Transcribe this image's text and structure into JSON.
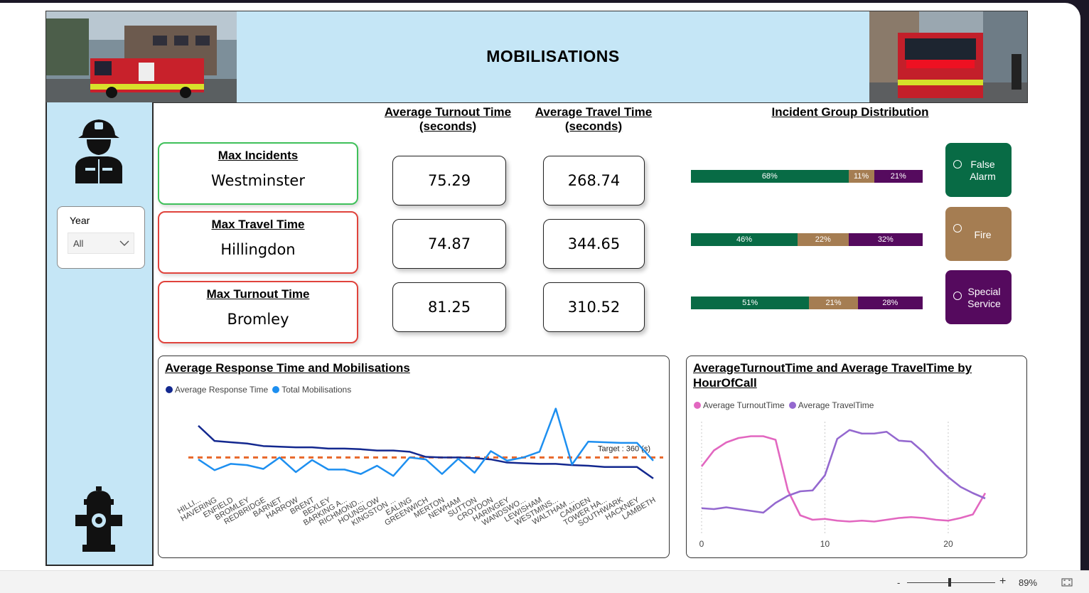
{
  "banner": {
    "title": "MOBILISATIONS"
  },
  "slicer": {
    "label": "Year",
    "value": "All"
  },
  "headers": {
    "turnout": "Average Turnout Time (seconds)",
    "travel": "Average Travel Time (seconds)",
    "distribution": "Incident Group Distribution"
  },
  "max_cards": [
    {
      "title": "Max Incidents",
      "value": "Westminster",
      "color": "#3fc05a"
    },
    {
      "title": "Max Travel Time",
      "value": "Hillingdon",
      "color": "#e0433c"
    },
    {
      "title": "Max Turnout Time",
      "value": "Bromley",
      "color": "#e0433c"
    }
  ],
  "kpis": {
    "turnout": [
      "75.29",
      "74.87",
      "81.25"
    ],
    "travel": [
      "268.74",
      "344.65",
      "310.52"
    ]
  },
  "distribution_bars": [
    {
      "false_alarm": 68,
      "fire": 11,
      "special": 21,
      "labels": [
        "68%",
        "11%",
        "21%"
      ]
    },
    {
      "false_alarm": 46,
      "fire": 22,
      "special": 32,
      "labels": [
        "46%",
        "22%",
        "32%"
      ]
    },
    {
      "false_alarm": 51,
      "fire": 21,
      "special": 28,
      "labels": [
        "51%",
        "21%",
        "28%"
      ]
    }
  ],
  "distribution_legend": [
    {
      "label": "False Alarm",
      "color": "#086b45"
    },
    {
      "label": "Fire",
      "color": "#a57d52"
    },
    {
      "label": "Special Service",
      "color": "#550a5e"
    }
  ],
  "zoom": {
    "level": "89%",
    "minus": "-",
    "plus": "+",
    "slider_fraction": 0.48
  },
  "chart_data": [
    {
      "type": "line",
      "title": "Average Response Time and Mobilisations",
      "categories": [
        "HILLI...",
        "HAVERING",
        "ENFIELD",
        "BROMLEY",
        "REDBRIDGE",
        "BARNET",
        "HARROW",
        "BRENT",
        "BEXLEY",
        "BARKING A...",
        "RICHMOND...",
        "HOUNSLOW",
        "KINGSTON ...",
        "EALING",
        "GREENWICH",
        "MERTON",
        "NEWHAM",
        "SUTTON",
        "CROYDON",
        "HARINGEY",
        "WANDSWO...",
        "LEWISHAM",
        "WESTMINS...",
        "WALTHAM ...",
        "CAMDEN",
        "TOWER HA...",
        "SOUTHWARK",
        "HACKNEY",
        "LAMBETH"
      ],
      "series": [
        {
          "name": "Average Response Time",
          "color": "#13288f",
          "values": [
            410,
            386,
            384,
            382,
            378,
            377,
            376,
            376,
            374,
            374,
            373,
            371,
            371,
            369,
            361,
            360,
            360,
            359,
            357,
            352,
            351,
            350,
            350,
            348,
            347,
            345,
            345,
            345,
            327
          ]
        },
        {
          "name": "Total Mobilisations",
          "color": "#1d8ff0",
          "values": [
            357,
            340,
            350,
            348,
            342,
            360,
            337,
            356,
            341,
            341,
            334,
            347,
            331,
            360,
            357,
            334,
            358,
            336,
            370,
            355,
            360,
            369,
            437,
            349,
            385,
            384,
            383,
            383,
            355
          ]
        }
      ],
      "target": {
        "value": 360,
        "label": "Target : 360 (s)",
        "color": "#e8672a"
      },
      "ylim": [
        300,
        450
      ]
    },
    {
      "type": "line",
      "title": "AverageTurnoutTime and Average TravelTime by HourOfCall",
      "x": [
        0,
        1,
        2,
        3,
        4,
        5,
        6,
        7,
        8,
        9,
        10,
        11,
        12,
        13,
        14,
        15,
        16,
        17,
        18,
        19,
        20,
        21,
        22,
        23
      ],
      "series": [
        {
          "name": "Average TurnoutTime",
          "color": "#e267c0",
          "values": [
            76,
            94,
            103,
            108,
            110,
            110,
            106,
            49,
            21,
            16,
            17,
            15,
            14,
            15,
            14,
            16,
            18,
            19,
            18,
            16,
            15,
            18,
            22,
            46
          ]
        },
        {
          "name": "Average TravelTime",
          "color": "#9468cf",
          "values": [
            29,
            28,
            30,
            28,
            26,
            24,
            35,
            43,
            48,
            49,
            66,
            107,
            117,
            113,
            113,
            115,
            105,
            104,
            92,
            77,
            64,
            53,
            46,
            40
          ]
        }
      ],
      "xticks": [
        0,
        10,
        20
      ],
      "xlim": [
        0,
        23
      ]
    }
  ]
}
